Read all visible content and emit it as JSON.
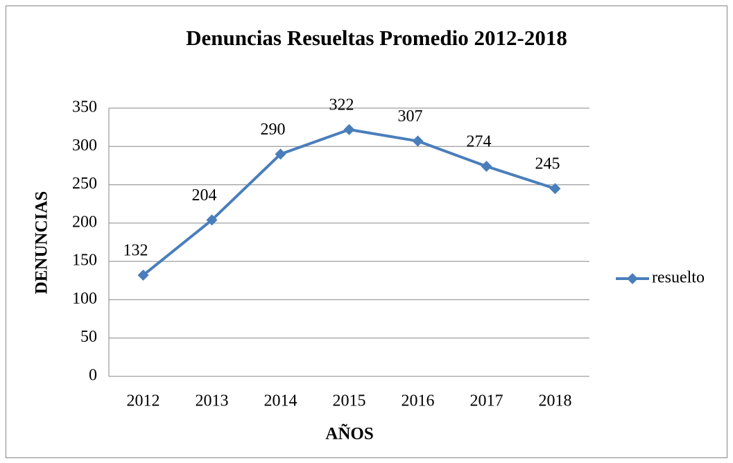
{
  "chart_data": {
    "type": "line",
    "title": "Denuncias Resueltas Promedio 2012-2018",
    "x_label": "AÑOS",
    "y_label": "DENUNCIAS",
    "categories": [
      "2012",
      "2013",
      "2014",
      "2015",
      "2016",
      "2017",
      "2018"
    ],
    "series": [
      {
        "name": "resuelto",
        "color": "#4a7ebb",
        "values": [
          132,
          204,
          290,
          322,
          307,
          274,
          245
        ]
      }
    ],
    "ylim": [
      0,
      350
    ],
    "yticks": [
      0,
      50,
      100,
      150,
      200,
      250,
      300,
      350
    ],
    "grid": true,
    "legend": "right"
  }
}
